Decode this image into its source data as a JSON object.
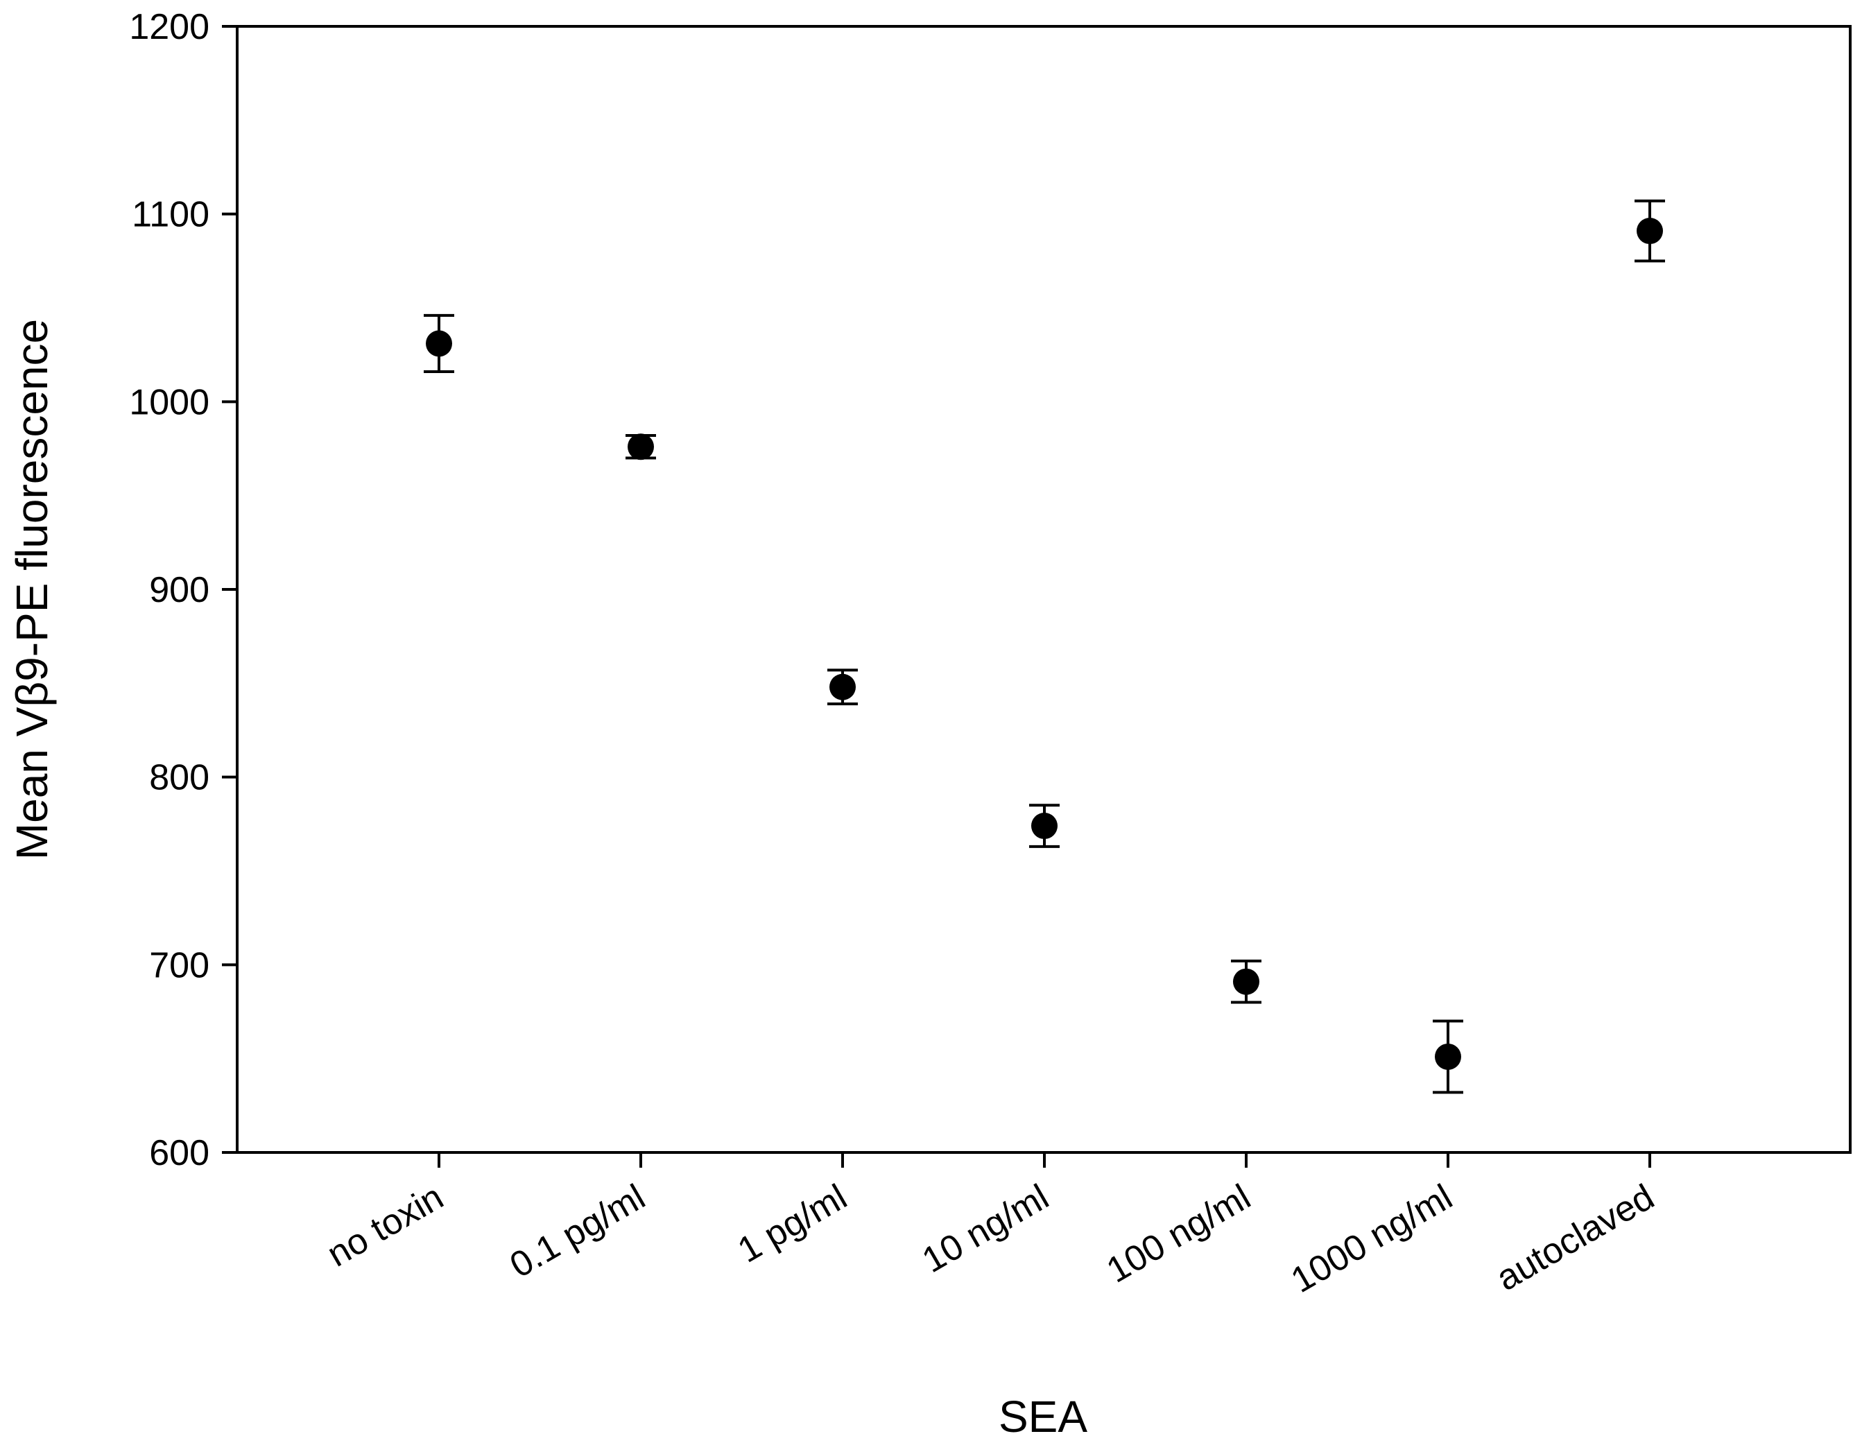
{
  "chart_data": {
    "type": "scatter",
    "title": "",
    "xlabel": "SEA",
    "ylabel": "Mean Vβ9-PE fluorescence",
    "categories": [
      "no toxin",
      "0.1 pg/ml",
      "1 pg/ml",
      "10 ng/ml",
      "100 ng/ml",
      "1000 ng/ml",
      "autoclaved"
    ],
    "series": [
      {
        "values": [
          1031,
          976,
          848,
          774,
          691,
          651,
          1091
        ],
        "error": [
          15,
          6,
          9,
          11,
          11,
          19,
          16
        ]
      }
    ],
    "ylim": [
      600,
      1200
    ],
    "yticks": [
      600,
      700,
      800,
      900,
      1000,
      1100,
      1200
    ],
    "grid": false,
    "legend": "none",
    "marker_color": "#000000"
  }
}
